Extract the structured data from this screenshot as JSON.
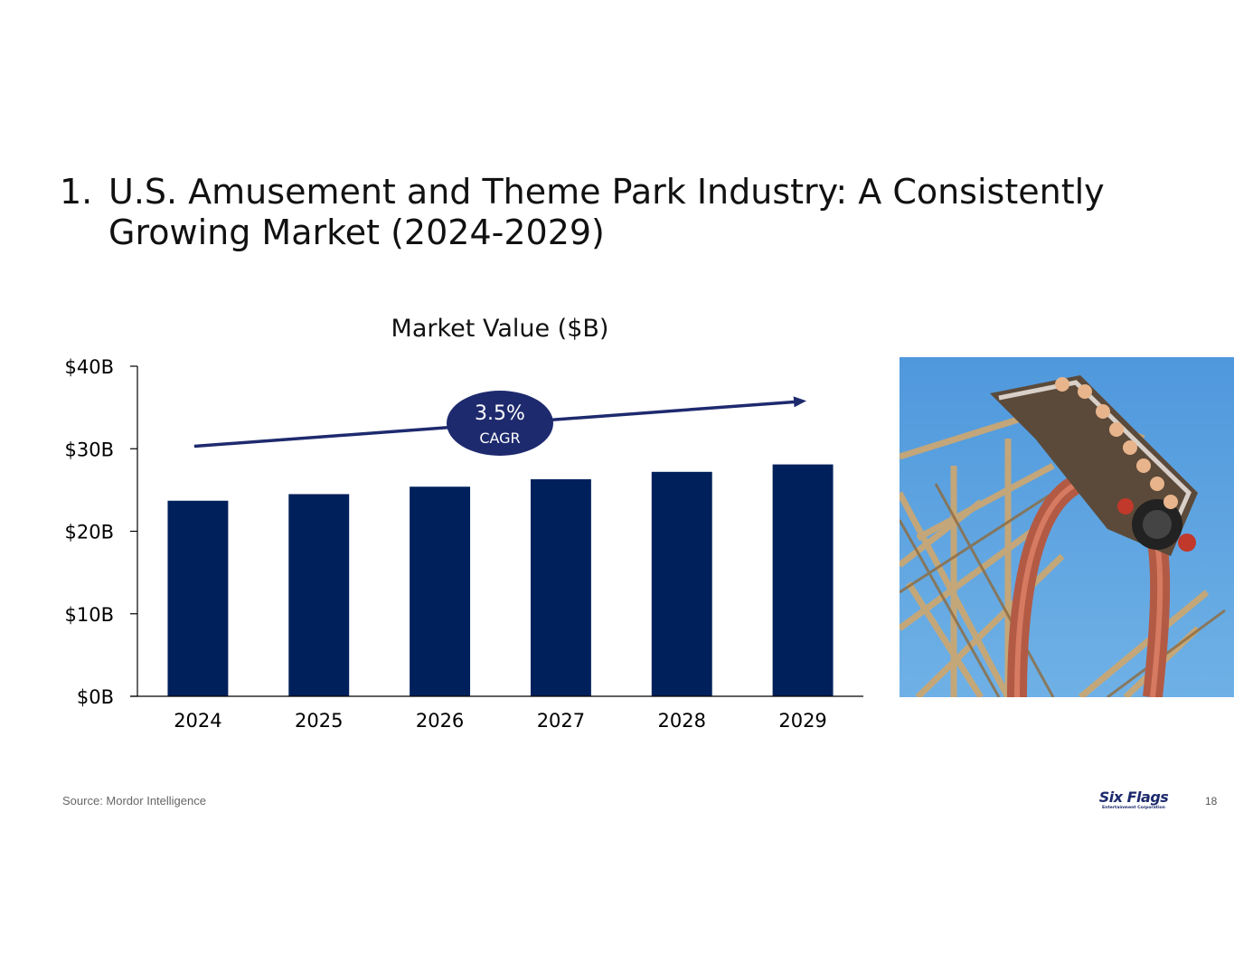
{
  "slide": {
    "title_number": "1.",
    "title_text": "U.S. Amusement and Theme Park Industry: A Consistently Growing Market (2024-2029)",
    "source": "Source: Mordor Intelligence",
    "page_number": "18",
    "logo_main": "Six Flags",
    "logo_sub": "Entertainment Corporation"
  },
  "chart_data": {
    "type": "bar",
    "title": "Market Value ($B)",
    "categories": [
      "2024",
      "2025",
      "2026",
      "2027",
      "2028",
      "2029"
    ],
    "values": [
      23.7,
      24.5,
      25.4,
      26.3,
      27.2,
      28.1
    ],
    "ylim": [
      0,
      40
    ],
    "yticks": [
      0,
      10,
      20,
      30,
      40
    ],
    "ytick_labels": [
      "$0B",
      "$10B",
      "$20B",
      "$30B",
      "$40B"
    ],
    "bar_color": "#00205b",
    "annotation": {
      "value": "3.5%",
      "label": "CAGR",
      "arrow_start_value": 30.3,
      "arrow_end_value": 35.8,
      "color": "#1e2a6e"
    }
  }
}
